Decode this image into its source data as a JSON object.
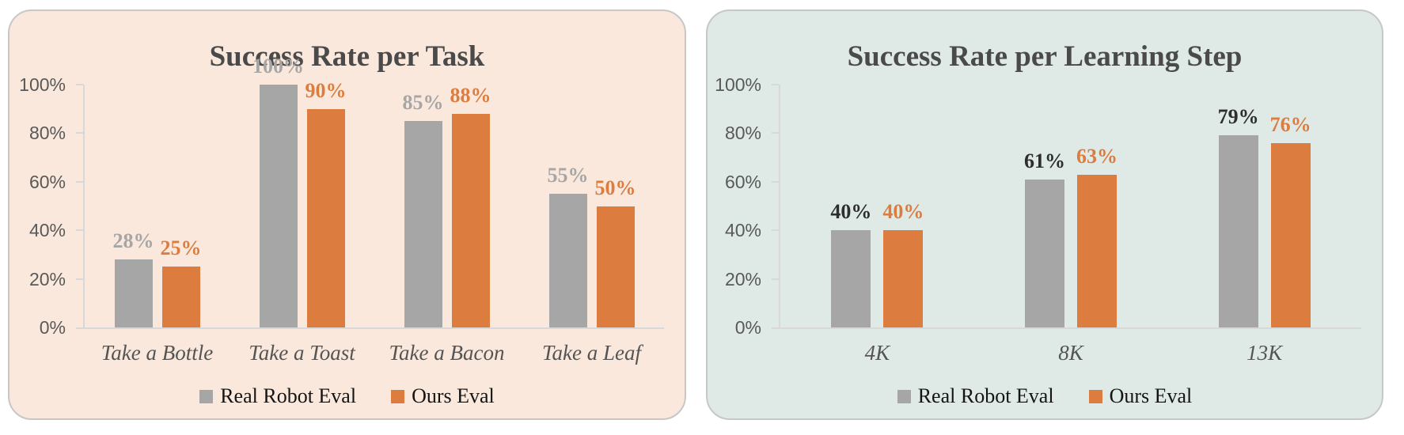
{
  "chart_data": [
    {
      "type": "bar",
      "title": "Success Rate per Task",
      "categories": [
        "Take a Bottle",
        "Take a Toast",
        "Take a Bacon",
        "Take a Leaf"
      ],
      "series": [
        {
          "name": "Real Robot Eval",
          "values": [
            28,
            100,
            85,
            55
          ],
          "bar_color": "#a6a6a6",
          "label_color": "#a6a6a6"
        },
        {
          "name": "Ours Eval",
          "values": [
            25,
            90,
            88,
            50
          ],
          "bar_color": "#dc7d3f",
          "label_color": "#dc7d3f"
        }
      ],
      "value_suffix": "%",
      "y_ticks": [
        0,
        20,
        40,
        60,
        80,
        100
      ],
      "y_tick_labels": [
        "0%",
        "20%",
        "40%",
        "60%",
        "80%",
        "100%"
      ],
      "ylim": [
        0,
        100
      ],
      "grid": false,
      "legend_position": "bottom",
      "panel_bg": "#fae8dc"
    },
    {
      "type": "bar",
      "title": "Success Rate per Learning Step",
      "categories": [
        "4K",
        "8K",
        "13K"
      ],
      "series": [
        {
          "name": "Real Robot Eval",
          "values": [
            40,
            61,
            79
          ],
          "bar_color": "#a6a6a6",
          "label_color": "#2e2e2e"
        },
        {
          "name": "Ours Eval",
          "values": [
            40,
            63,
            76
          ],
          "bar_color": "#dc7d3f",
          "label_color": "#dc7d3f"
        }
      ],
      "value_suffix": "%",
      "y_ticks": [
        0,
        20,
        40,
        60,
        80,
        100
      ],
      "y_tick_labels": [
        "0%",
        "20%",
        "40%",
        "60%",
        "80%",
        "100%"
      ],
      "ylim": [
        0,
        100
      ],
      "grid": false,
      "legend_position": "bottom",
      "panel_bg": "#dfeae7"
    }
  ]
}
